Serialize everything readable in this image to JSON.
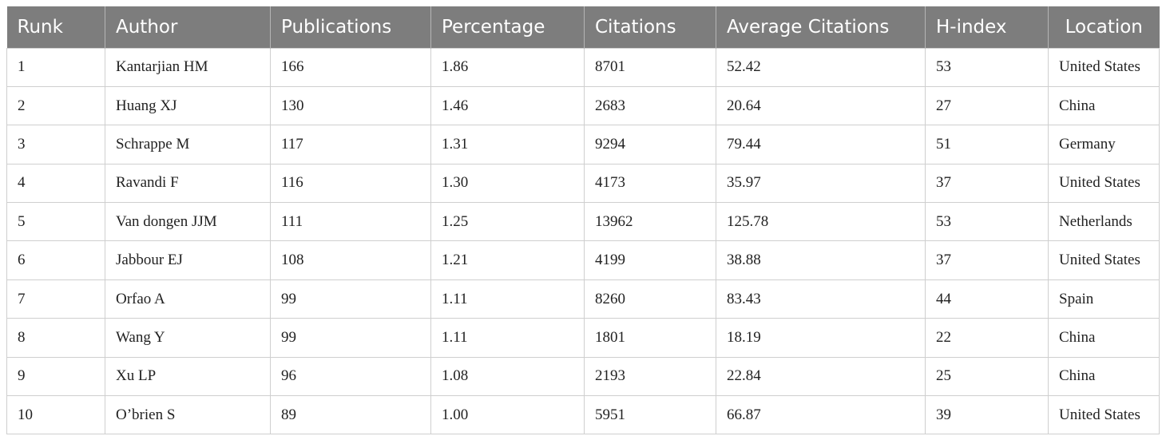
{
  "table": {
    "headers": [
      "Runk",
      "Author",
      "Publications",
      "Percentage",
      "Citations",
      "Average Citations",
      "H-index",
      "Location"
    ],
    "rows": [
      [
        "1",
        "Kantarjian HM",
        "166",
        "1.86",
        "8701",
        "52.42",
        "53",
        "United States"
      ],
      [
        "2",
        "Huang XJ",
        "130",
        "1.46",
        "2683",
        "20.64",
        "27",
        "China"
      ],
      [
        "3",
        "Schrappe M",
        "117",
        "1.31",
        "9294",
        "79.44",
        "51",
        "Germany"
      ],
      [
        "4",
        "Ravandi F",
        "116",
        "1.30",
        "4173",
        "35.97",
        "37",
        "United States"
      ],
      [
        "5",
        "Van dongen JJM",
        "111",
        "1.25",
        "13962",
        "125.78",
        "53",
        "Netherlands"
      ],
      [
        "6",
        "Jabbour EJ",
        "108",
        "1.21",
        "4199",
        "38.88",
        "37",
        "United States"
      ],
      [
        "7",
        "Orfao A",
        "99",
        "1.11",
        "8260",
        "83.43",
        "44",
        "Spain"
      ],
      [
        "8",
        "Wang Y",
        "99",
        "1.11",
        "1801",
        "18.19",
        "22",
        "China"
      ],
      [
        "9",
        "Xu LP",
        "96",
        "1.08",
        "2193",
        "22.84",
        "25",
        "China"
      ],
      [
        "10",
        "O’brien S",
        "89",
        "1.00",
        "5951",
        "66.87",
        "39",
        "United States"
      ]
    ]
  }
}
